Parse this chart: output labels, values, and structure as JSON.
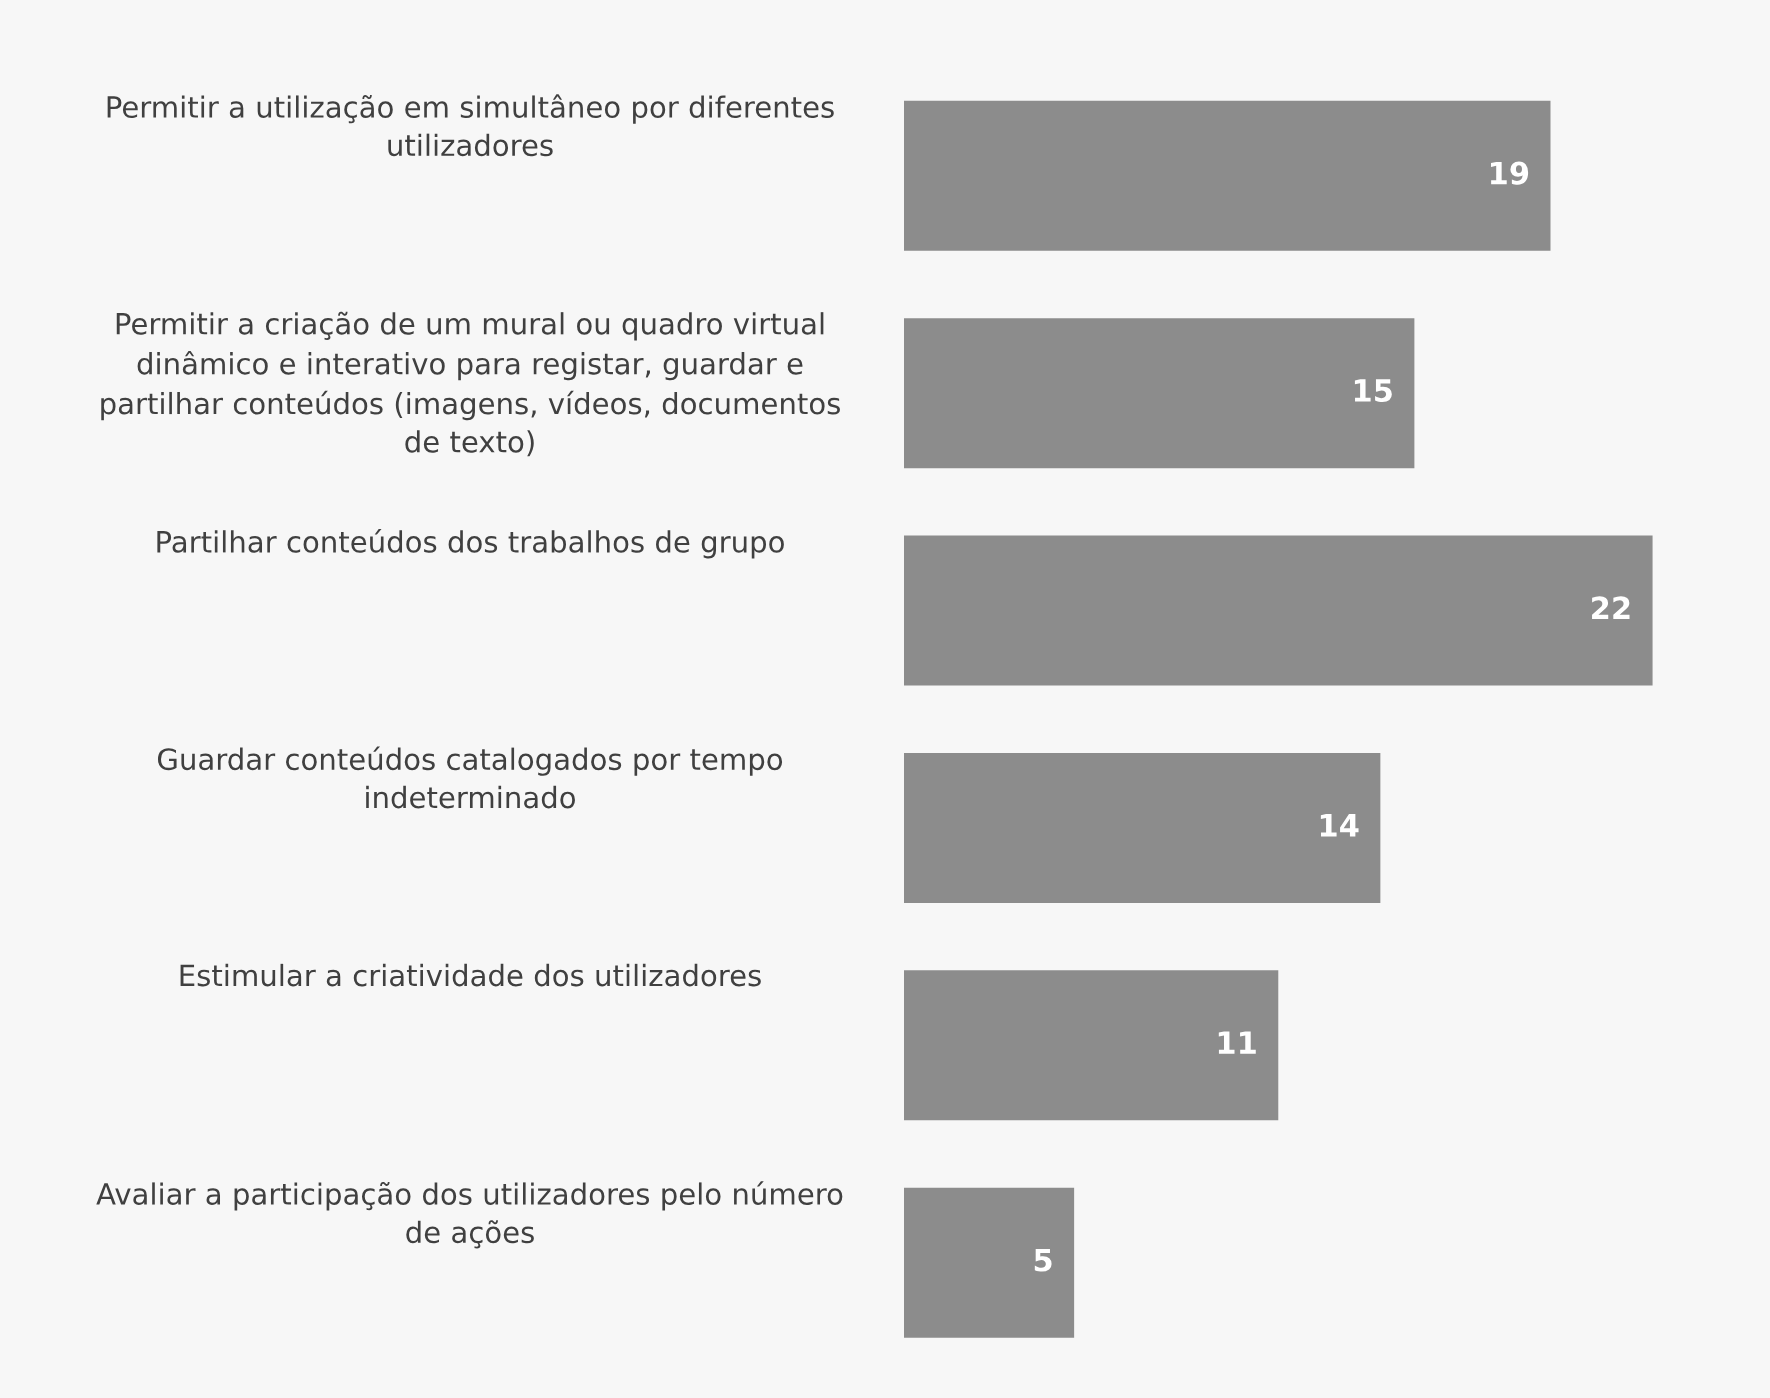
{
  "chart_data": {
    "type": "bar",
    "orientation": "horizontal",
    "categories": [
      "Permitir a utilização em simultâneo por diferentes\nutilizadores",
      "Permitir a criação de um mural ou quadro virtual\ndinâmico e interativo para registar, guardar e\npartilhar conteúdos (imagens, vídeos, documentos\nde texto)",
      "Partilhar conteúdos dos trabalhos de grupo",
      "Guardar conteúdos catalogados por tempo\nindeterminado",
      "Estimular a criatividade dos utilizadores",
      "Avaliar a participação dos utilizadores pelo número\nde ações"
    ],
    "values": [
      19,
      15,
      22,
      14,
      11,
      5
    ],
    "color": "#8c8c8c",
    "data_labels": true,
    "tick_labels": false
  }
}
